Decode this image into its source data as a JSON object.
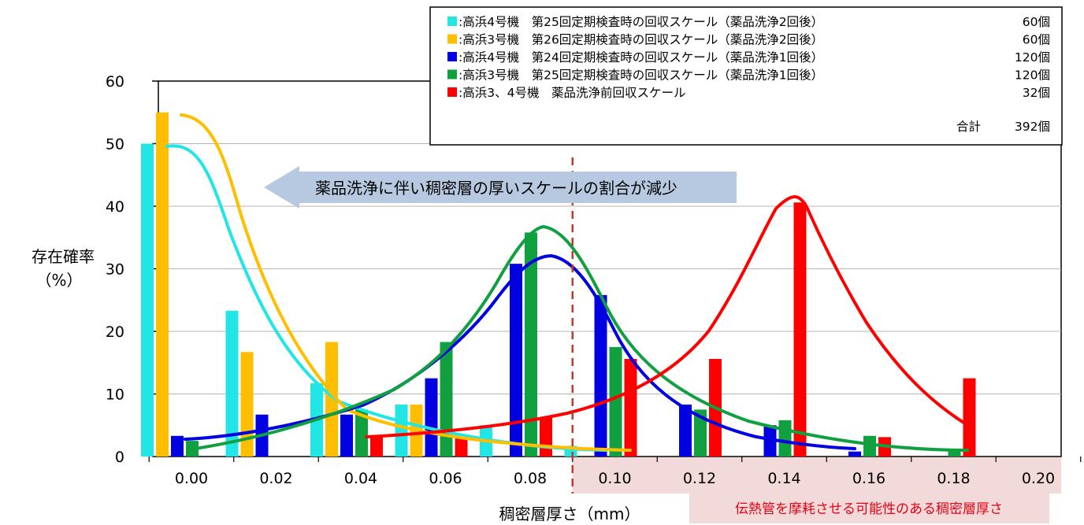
{
  "chart_data": {
    "type": "bar",
    "ylabel": [
      "存在確率",
      "（%）"
    ],
    "xlabel": "稠密層厚さ（mm）",
    "ylim": [
      0,
      60
    ],
    "yticks": [
      "0",
      "10",
      "20",
      "30",
      "40",
      "50",
      "60"
    ],
    "categories": [
      "0.00",
      "0.02",
      "0.04",
      "0.06",
      "0.08",
      "0.10",
      "0.12",
      "0.14",
      "0.16",
      "0.18",
      "0.20"
    ],
    "grid": true,
    "legend_position": "top-right",
    "series": [
      {
        "name": ":高浜4号機　第25回定期検査時の回収スケール（薬品洗浄2回後）",
        "count": "60個",
        "color": "#22e6e6",
        "values": [
          50,
          23.3,
          11.7,
          8.3,
          5,
          1.7,
          0,
          0,
          0,
          0,
          null
        ]
      },
      {
        "name": ":高浜3号機　第26回定期検査時の回収スケール（薬品洗浄2回後）",
        "count": "60個",
        "color": "#ffbf00",
        "values": [
          55,
          16.7,
          18.3,
          8.3,
          0,
          0,
          0,
          0,
          0,
          0,
          null
        ]
      },
      {
        "name": ":高浜4号機　第24回定期検査時の回収スケール（薬品洗浄1回後）",
        "count": "120個",
        "color": "#0000e0",
        "values": [
          3.3,
          6.7,
          6.7,
          12.5,
          30.8,
          25.8,
          8.3,
          5,
          0.8,
          0,
          null
        ]
      },
      {
        "name": ":高浜3号機　第25回定期検査時の回収スケール（薬品洗浄1回後）",
        "count": "120個",
        "color": "#10a040",
        "values": [
          2.5,
          0,
          7.5,
          18.3,
          35.8,
          17.5,
          7.5,
          5.8,
          3.3,
          0.8,
          null
        ]
      },
      {
        "name": ":高浜3、4号機　薬品洗浄前回収スケール",
        "count": "32個",
        "color": "#ff0000",
        "values": [
          0,
          0,
          3.1,
          3.1,
          6.3,
          15.6,
          15.6,
          40.6,
          3.1,
          12.5,
          null
        ]
      }
    ],
    "total_label": "合計",
    "total_count": "392個",
    "annotations": {
      "arrow_text": "薬品洗浄に伴い稠密層の厚いスケールの割合が減少",
      "region_label": "伝熱管を摩耗させる可能性のある稠密層厚さ",
      "region_start_x": "0.09"
    }
  }
}
